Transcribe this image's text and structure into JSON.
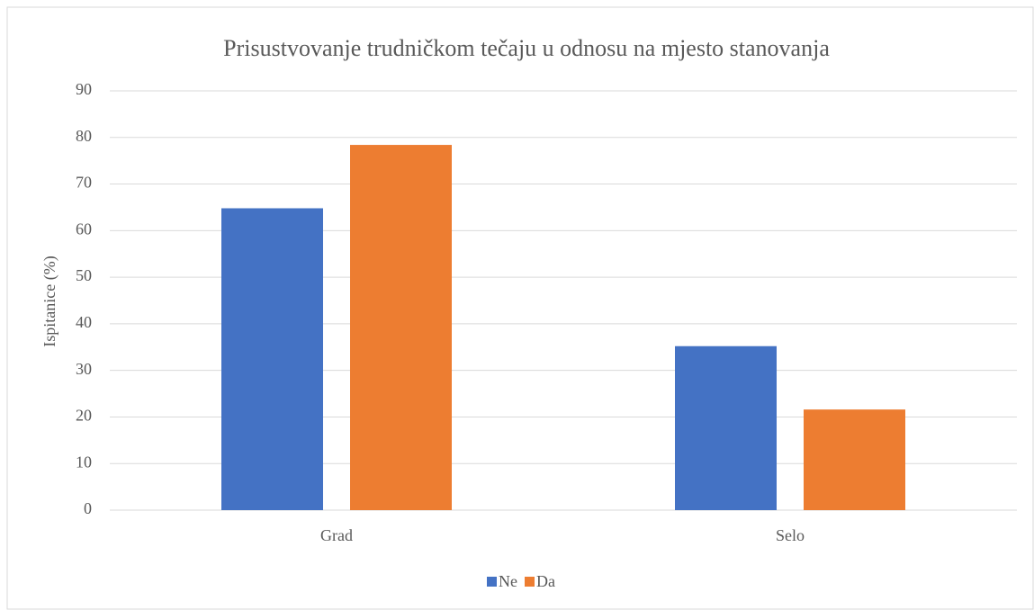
{
  "chart_data": {
    "type": "bar",
    "title": "Prisustvovanje trudničkom tečaju u odnosu na mjesto stanovanja",
    "y_label": "Ispitanice (%)",
    "categories": [
      "Grad",
      "Selo"
    ],
    "series": [
      {
        "name": "Ne",
        "color": "#4472c4",
        "values": [
          64.8,
          35.2
        ]
      },
      {
        "name": "Da",
        "color": "#ed7d31",
        "values": [
          78.4,
          21.6
        ]
      }
    ],
    "ylim": [
      0,
      90
    ],
    "yticks": [
      0,
      10,
      20,
      30,
      40,
      50,
      60,
      70,
      80,
      90
    ],
    "grid": true,
    "legend": "bottom"
  }
}
